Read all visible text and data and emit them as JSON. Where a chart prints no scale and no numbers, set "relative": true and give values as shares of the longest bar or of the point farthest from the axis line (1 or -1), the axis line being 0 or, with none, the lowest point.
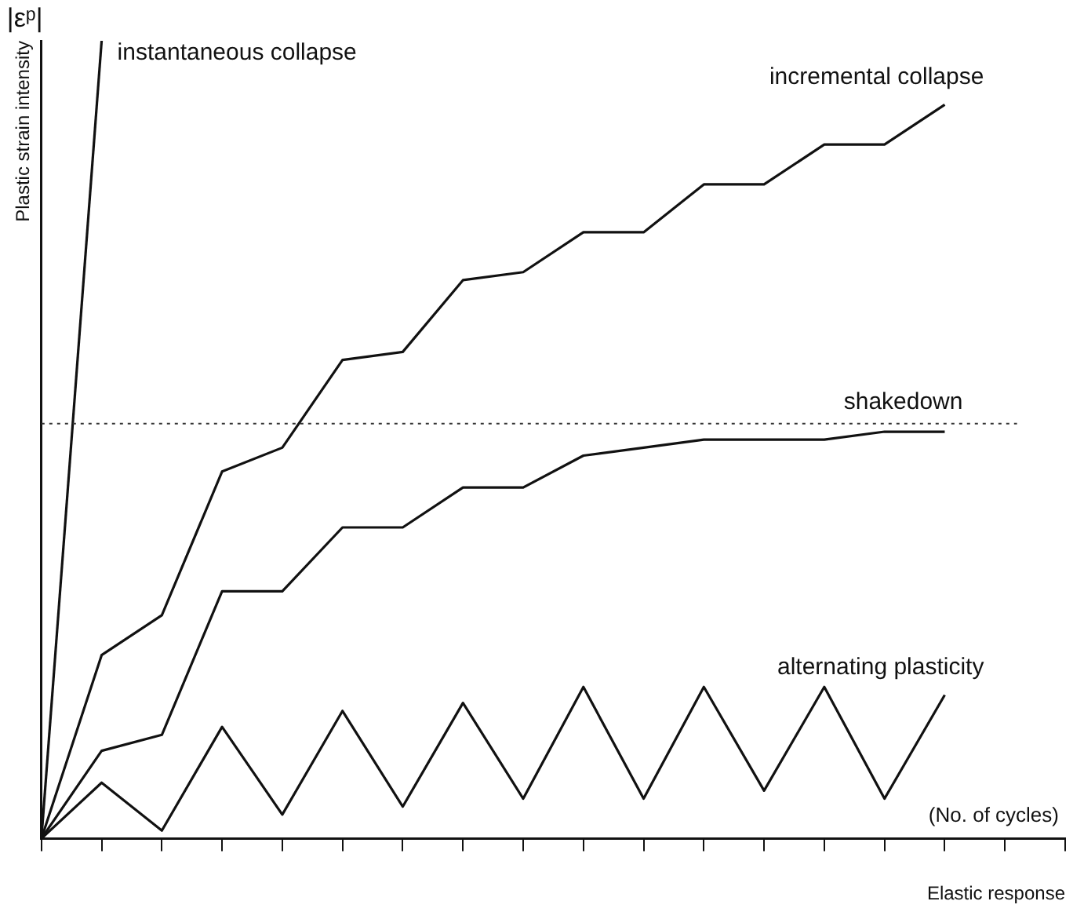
{
  "chart_data": {
    "type": "line",
    "relative": true,
    "xlabel": "Elastic response",
    "ylabel": "Plastic strain intensity",
    "categories": [
      null,
      null,
      null,
      null,
      null,
      null,
      null,
      null,
      null,
      null,
      null,
      null,
      null,
      null,
      null,
      null,
      null,
      null
    ],
    "series": [
      {
        "name": "instantaneous collapse",
        "color": "#111111",
        "values": [
          0,
          1,
          null,
          null,
          null,
          null,
          null,
          null,
          null,
          null,
          null,
          null,
          null,
          null,
          null,
          null,
          null,
          null
        ]
      },
      {
        "name": "incremental collapse",
        "color": "#111111",
        "values": [
          0,
          0.23,
          0.28,
          0.46,
          0.49,
          0.6,
          0.61,
          0.7,
          0.71,
          0.76,
          0.76,
          0.82,
          0.82,
          0.87,
          0.87,
          0.92,
          null,
          null
        ]
      },
      {
        "color": "#111111",
        "values": [
          0,
          0.11,
          0.13,
          0.31,
          0.31,
          0.39,
          0.39,
          0.44,
          0.44,
          0.48,
          0.49,
          0.5,
          0.5,
          0.5,
          0.51,
          0.51,
          null,
          null
        ]
      },
      {
        "name": "alternating plasticity",
        "color": "#111111",
        "values": [
          0,
          0.07,
          0.01,
          0.14,
          0.03,
          0.16,
          0.04,
          0.17,
          0.05,
          0.19,
          0.05,
          0.19,
          0.06,
          0.19,
          0.05,
          0.18,
          null,
          null
        ]
      }
    ],
    "ref_lines": [
      {
        "axis": "y",
        "value": 0.52,
        "label": "shakedown",
        "color": "#333333",
        "line_style": "dotted"
      }
    ],
    "annotations": [
      "|εᵖ|",
      "(No. of cycles)"
    ],
    "grid": false,
    "legend": false,
    "marker": "none",
    "line_style": "solid"
  }
}
